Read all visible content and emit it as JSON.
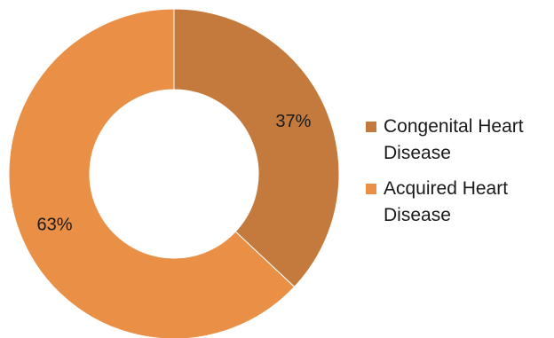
{
  "chart_data": {
    "type": "pie",
    "donut": true,
    "categories": [
      "Congenital Heart Disease",
      "Acquired Heart Disease"
    ],
    "values": [
      37,
      63
    ],
    "labels": [
      "37%",
      "63%"
    ],
    "colors": [
      "#C57A3D",
      "#E98F46"
    ],
    "legend_position": "right"
  }
}
